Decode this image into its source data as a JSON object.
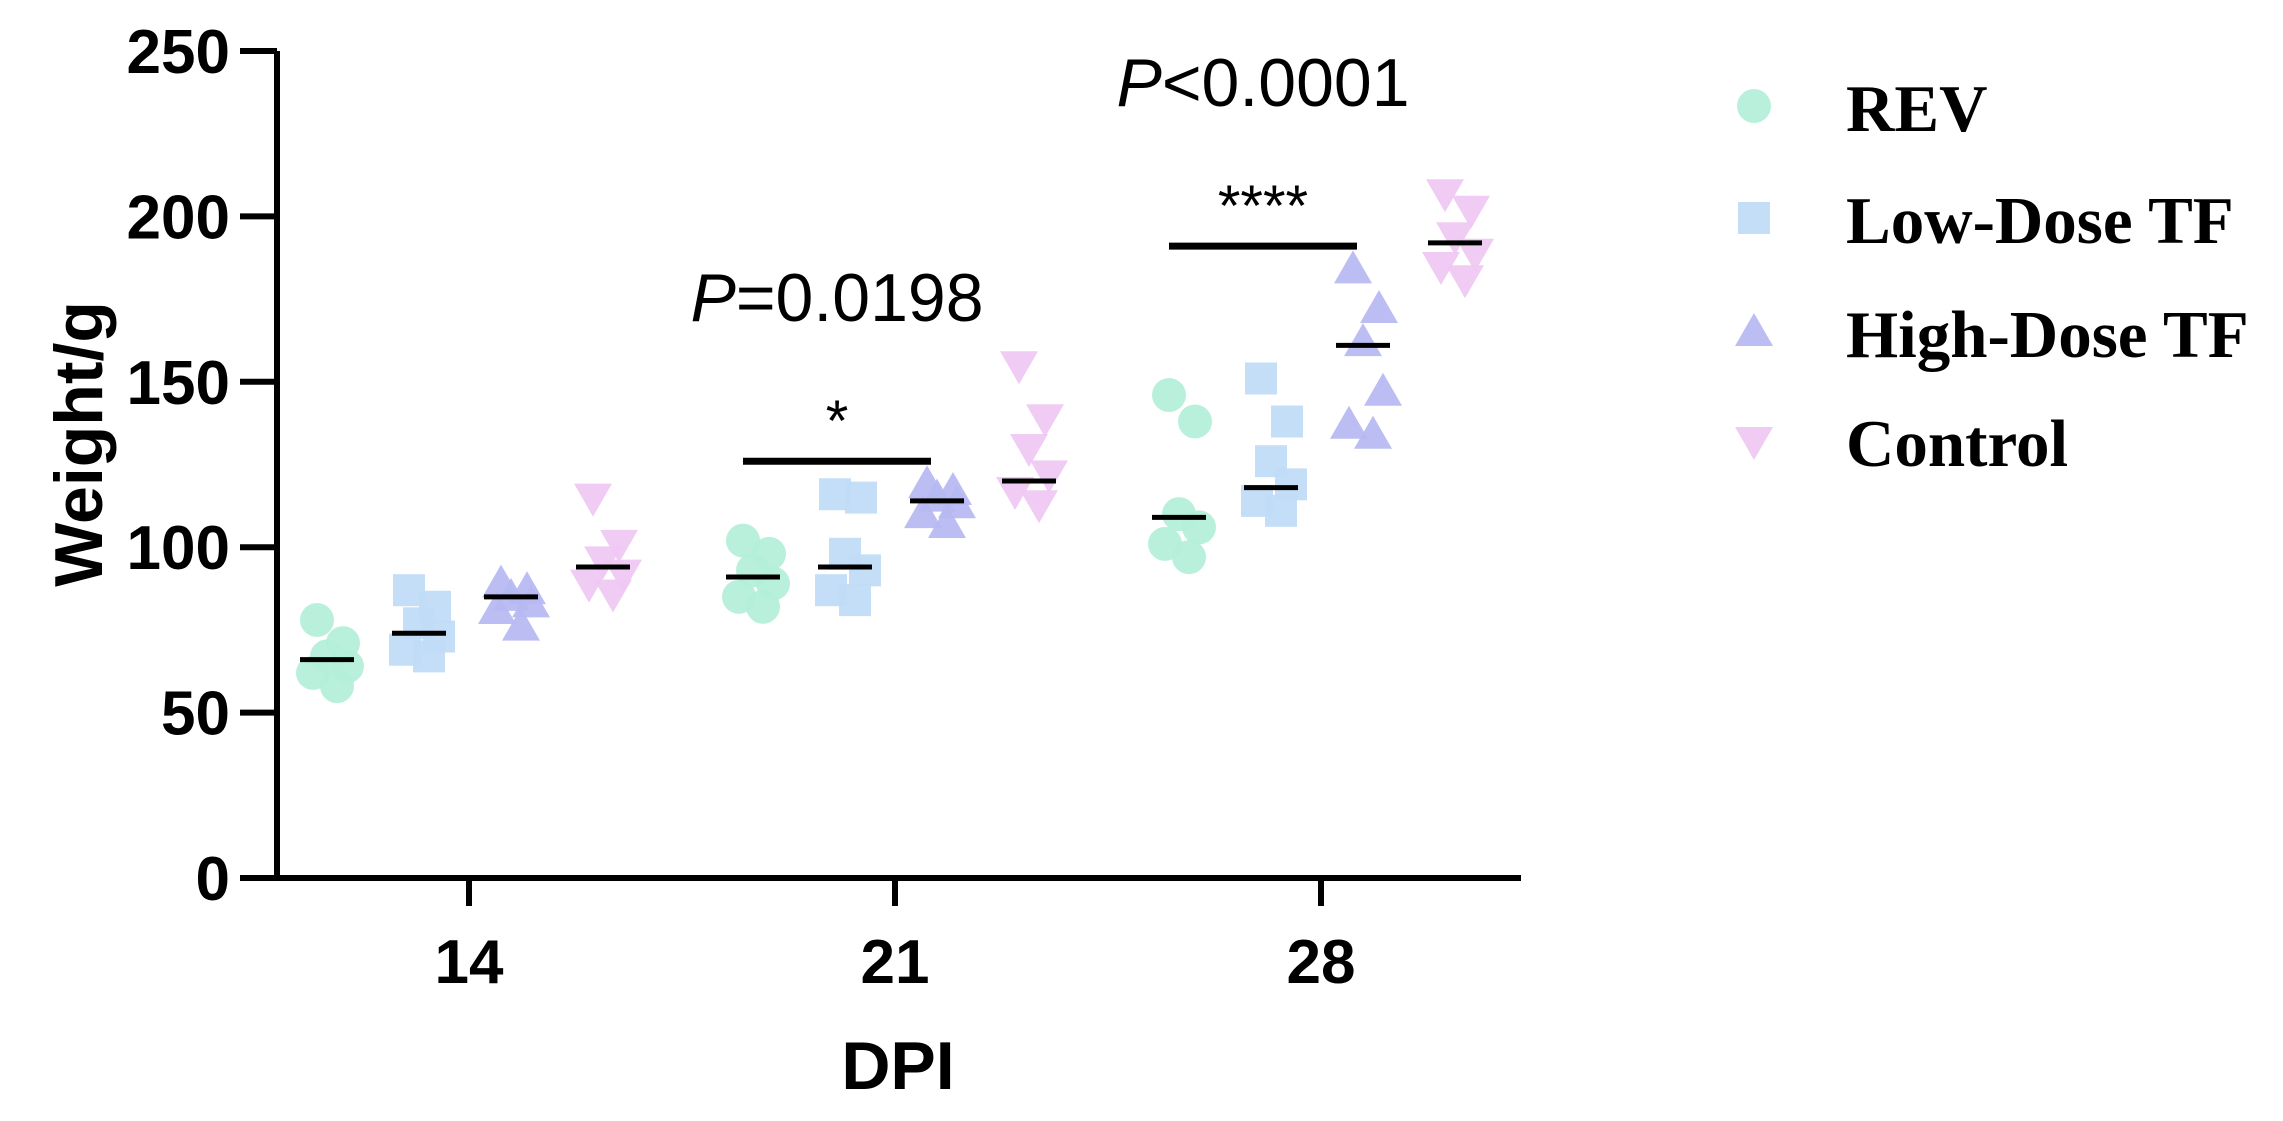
{
  "chart_data": {
    "type": "scatter",
    "xlabel": "DPI",
    "ylabel": "Weight/g",
    "categories": [
      "14",
      "21",
      "28"
    ],
    "ylim": [
      0,
      250
    ],
    "yticks": [
      0,
      50,
      100,
      150,
      200,
      250
    ],
    "grid": false,
    "legend": "right",
    "series": [
      {
        "name": "REV",
        "marker": "circle",
        "color": "#b3efd9",
        "values": [
          [
            78,
            71,
            67,
            64,
            62,
            58
          ],
          [
            102,
            98,
            93,
            89,
            85,
            82
          ],
          [
            146,
            138,
            110,
            106,
            101,
            97
          ]
        ],
        "center_lines": [
          66,
          91,
          109
        ]
      },
      {
        "name": "Low-Dose TF",
        "marker": "square",
        "color": "#c0dbf6",
        "values": [
          [
            87,
            82,
            77,
            73,
            69,
            67
          ],
          [
            116,
            115,
            98,
            93,
            87,
            84
          ],
          [
            151,
            138,
            126,
            119,
            114,
            111
          ]
        ],
        "center_lines": [
          74,
          94,
          118
        ]
      },
      {
        "name": "High-Dose TF",
        "marker": "triangle-up",
        "color": "#b6b8f2",
        "values": [
          [
            89,
            87,
            85,
            83,
            81,
            76
          ],
          [
            119,
            117,
            115,
            113,
            110,
            107
          ],
          [
            184,
            172,
            162,
            147,
            137,
            134
          ]
        ],
        "center_lines": [
          85,
          114,
          161
        ]
      },
      {
        "name": "Control",
        "marker": "triangle-down",
        "color": "#efc8f3",
        "values": [
          [
            115,
            101,
            96,
            92,
            89,
            86
          ],
          [
            155,
            139,
            130,
            122,
            117,
            113
          ],
          [
            207,
            202,
            194,
            189,
            185,
            181
          ]
        ],
        "center_lines": [
          94,
          120,
          192
        ]
      }
    ],
    "comparisons": [
      {
        "category": 1,
        "from": 0,
        "to": 2,
        "stars": "*",
        "p_symbol": "P",
        "p_rest": "=0.0198"
      },
      {
        "category": 2,
        "from": 0,
        "to": 2,
        "stars": "****",
        "p_symbol": "P",
        "p_rest": "<0.0001"
      }
    ]
  }
}
